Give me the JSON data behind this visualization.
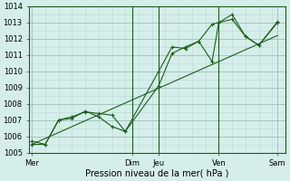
{
  "xlabel": "Pression niveau de la mer( hPa )",
  "bg_color": "#d6eeea",
  "line_color": "#1a5e1a",
  "grid_major_color": "#9dbdba",
  "grid_minor_color": "#b8d8d5",
  "ylim": [
    1005,
    1014
  ],
  "yticks": [
    1005,
    1006,
    1007,
    1008,
    1009,
    1010,
    1011,
    1012,
    1013,
    1014
  ],
  "day_labels": [
    "Mer",
    "Dim",
    "Jeu",
    "Ven",
    "Sam"
  ],
  "day_positions": [
    0,
    3.75,
    4.75,
    7.0,
    9.2
  ],
  "vline_positions": [
    3.75,
    4.75,
    7.0
  ],
  "line1_x": [
    0,
    0.5,
    1.0,
    1.5,
    2.0,
    2.5,
    3.0,
    3.5,
    4.75,
    5.25,
    5.75,
    6.25,
    6.75,
    7.0,
    7.5,
    8.0,
    8.5,
    9.2
  ],
  "line1_y": [
    1005.7,
    1005.5,
    1007.0,
    1007.2,
    1007.5,
    1007.4,
    1007.3,
    1006.3,
    1009.1,
    1011.1,
    1011.5,
    1011.85,
    1010.6,
    1013.0,
    1013.5,
    1012.15,
    1011.6,
    1013.0
  ],
  "line2_x": [
    0,
    0.5,
    1.0,
    1.5,
    2.0,
    2.5,
    3.0,
    3.5,
    4.75,
    5.25,
    5.75,
    6.25,
    6.75,
    7.0,
    7.5,
    8.0,
    8.5,
    9.2
  ],
  "line2_y": [
    1005.5,
    1005.5,
    1007.0,
    1007.1,
    1007.55,
    1007.2,
    1006.6,
    1006.3,
    1010.0,
    1011.5,
    1011.4,
    1011.85,
    1012.9,
    1013.0,
    1013.2,
    1012.15,
    1011.6,
    1013.05
  ],
  "line3_x": [
    0,
    9.2
  ],
  "line3_y": [
    1005.5,
    1012.2
  ],
  "xlim": [
    -0.1,
    9.5
  ],
  "xlabel_fontsize": 7,
  "tick_labelsize": 6
}
